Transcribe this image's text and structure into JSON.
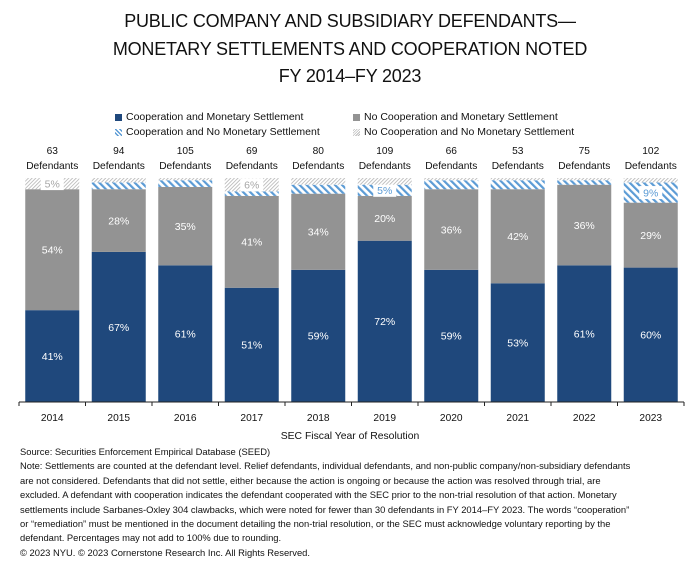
{
  "chart_data": {
    "type": "bar",
    "stacked": true,
    "title": "PUBLIC COMPANY AND SUBSIDIARY DEFENDANTS—MONETARY SETTLEMENTS AND COOPERATION NOTED FY 2014–FY 2023",
    "title_lines": [
      "PUBLIC COMPANY AND SUBSIDIARY DEFENDANTS—",
      "MONETARY SETTLEMENTS AND COOPERATION NOTED",
      "FY 2014–FY 2023"
    ],
    "categories": [
      "2014",
      "2015",
      "2016",
      "2017",
      "2018",
      "2019",
      "2020",
      "2021",
      "2022",
      "2023"
    ],
    "defendant_counts": [
      63,
      94,
      105,
      69,
      80,
      109,
      66,
      53,
      75,
      102
    ],
    "defendant_label": "Defendants",
    "series": [
      {
        "name": "Cooperation and Monetary Settlement",
        "values": [
          41,
          67,
          61,
          51,
          59,
          72,
          59,
          53,
          61,
          60
        ],
        "color": "#1f487c",
        "fill": "solid",
        "label_color": "#ffffff"
      },
      {
        "name": "No Cooperation and Monetary Settlement",
        "values": [
          54,
          28,
          35,
          41,
          34,
          20,
          36,
          42,
          36,
          29
        ],
        "color": "#939393",
        "fill": "solid",
        "label_color": "#ffffff"
      },
      {
        "name": "Cooperation and No Monetary Settlement",
        "values": [
          0,
          3,
          3,
          2,
          4,
          5,
          4,
          4,
          2,
          9
        ],
        "color": "#5b9bd5",
        "fill": "hatch",
        "label_color": "#5b9bd5"
      },
      {
        "name": "No Cooperation and No Monetary Settlement",
        "values": [
          5,
          2,
          1,
          6,
          3,
          3,
          1,
          1,
          1,
          2
        ],
        "color": "#bdbdbd",
        "fill": "hatch-fine",
        "label_color": "#a6a6a6"
      }
    ],
    "value_suffix": "%",
    "label_min_value": 5,
    "xlabel": "SEC Fiscal Year of Resolution",
    "ylabel": "",
    "ylim": [
      0,
      100
    ],
    "grid": false,
    "legend_position": "top"
  },
  "notes": {
    "source": "Source: Securities Enforcement Empirical Database (SEED)",
    "note_lines": [
      "Note: Settlements are counted at the defendant level. Relief defendants, individual defendants, and non-public company/non-subsidiary defendants",
      "are not considered. Defendants that did not settle, either because the action is ongoing or because the action was resolved through trial, are",
      "excluded. A defendant with cooperation indicates the defendant cooperated with the SEC prior to the non-trial resolution of that action. Monetary",
      "settlements include Sarbanes-Oxley 304 clawbacks, which were noted for fewer than 30 defendants in FY 2014–FY 2023. The words “cooperation”",
      "or “remediation” must be mentioned in the document detailing the non-trial resolution, or the SEC must acknowledge voluntary reporting by the",
      "defendant. Percentages may not add to 100% due to rounding."
    ],
    "copyright": "© 2023 NYU. © 2023 Cornerstone Research Inc. All Rights Reserved."
  }
}
